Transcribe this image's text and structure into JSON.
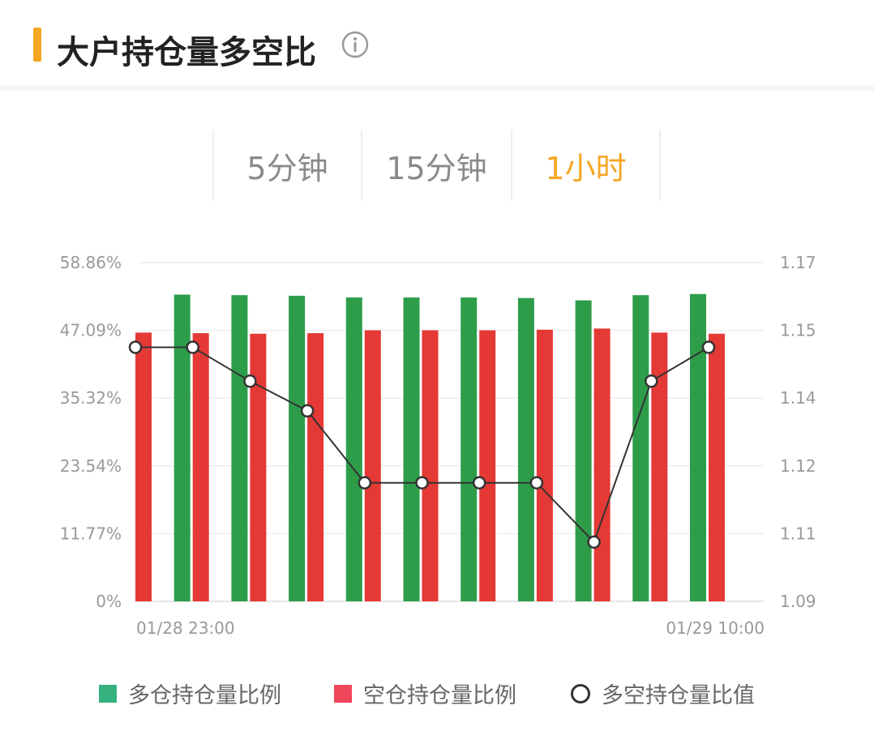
{
  "header": {
    "title": "大户持仓量多空比"
  },
  "tabs": [
    {
      "label": "5分钟",
      "active": false
    },
    {
      "label": "15分钟",
      "active": false
    },
    {
      "label": "1小时",
      "active": true
    }
  ],
  "colors": {
    "long": "#2e9d4a",
    "short": "#e53935",
    "ratio_line": "#333333",
    "accent": "#f5a623"
  },
  "chart_data": {
    "type": "bar",
    "x": [
      "01/28 23:00",
      "",
      "",
      "",
      "",
      "",
      "",
      "",
      "",
      "",
      "01/29 10:00"
    ],
    "x_tick_labels": [
      "01/28 23:00",
      "01/29 10:00"
    ],
    "y_left": {
      "ticks": [
        "0%",
        "11.77%",
        "23.54%",
        "35.32%",
        "47.09%",
        "58.86%"
      ],
      "ylim": [
        0,
        58.86
      ]
    },
    "y_right": {
      "ticks": [
        "1.09",
        "1.11",
        "1.12",
        "1.14",
        "1.15",
        "1.17"
      ],
      "ylim": [
        1.09,
        1.17
      ]
    },
    "grid": true,
    "legend_position": "bottom",
    "series": [
      {
        "name": "多仓持仓量比例",
        "type": "bar",
        "axis": "left",
        "values": [
          53.1,
          53.3,
          53.2,
          53.1,
          52.8,
          52.8,
          52.8,
          52.7,
          52.3,
          53.2,
          53.4
        ]
      },
      {
        "name": "空仓持仓量比例",
        "type": "bar",
        "axis": "left",
        "values": [
          46.7,
          46.6,
          46.5,
          46.6,
          47.1,
          47.1,
          47.1,
          47.2,
          47.4,
          46.7,
          46.5
        ]
      },
      {
        "name": "多空持仓量比值",
        "type": "line",
        "axis": "right",
        "values": [
          1.15,
          1.15,
          1.142,
          1.135,
          1.118,
          1.118,
          1.118,
          1.118,
          1.104,
          1.142,
          1.15
        ]
      }
    ]
  },
  "legend": [
    {
      "label": "多仓持仓量比例",
      "marker": "square"
    },
    {
      "label": "空仓持仓量比例",
      "marker": "square"
    },
    {
      "label": "多空持仓量比值",
      "marker": "circle"
    }
  ]
}
